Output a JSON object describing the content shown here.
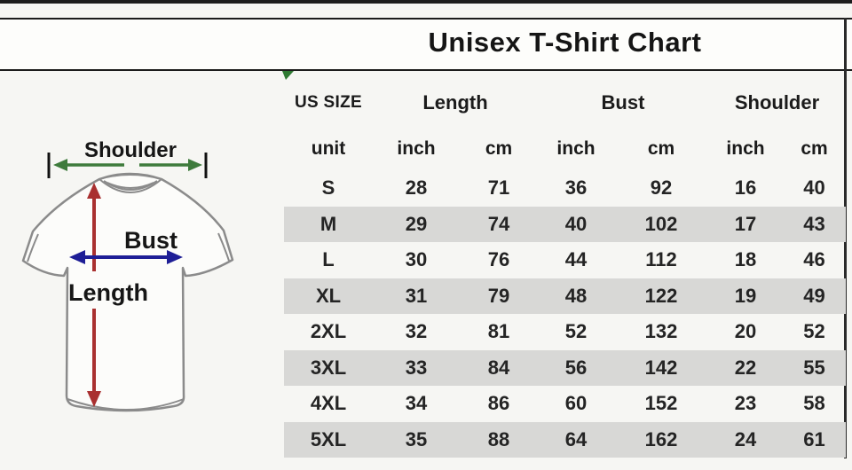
{
  "title": "Unisex T-Shirt Chart",
  "diagram": {
    "shoulder_label": "Shoulder",
    "bust_label": "Bust",
    "length_label": "Length",
    "colors": {
      "shoulder_arrow": "#3e7b3c",
      "bust_arrow": "#1e1e96",
      "length_arrow": "#a93030",
      "shirt_outline": "#8b8b8b"
    }
  },
  "table": {
    "size_col_header": "US SIZE",
    "unit_header": "unit",
    "groups": [
      {
        "label": "Length"
      },
      {
        "label": "Bust"
      },
      {
        "label": "Shoulder"
      }
    ],
    "unit_cells": [
      "inch",
      "cm",
      "inch",
      "cm",
      "inch",
      "cm"
    ],
    "alt_row_color": "#d8d8d6"
  },
  "chart_data": {
    "type": "table",
    "title": "Unisex T-Shirt Chart",
    "column_groups": [
      "Length",
      "Bust",
      "Shoulder"
    ],
    "columns": [
      "US SIZE",
      "Length inch",
      "Length cm",
      "Bust inch",
      "Bust cm",
      "Shoulder inch",
      "Shoulder cm"
    ],
    "rows": [
      [
        "S",
        28,
        71,
        36,
        92,
        16,
        40
      ],
      [
        "M",
        29,
        74,
        40,
        102,
        17,
        43
      ],
      [
        "L",
        30,
        76,
        44,
        112,
        18,
        46
      ],
      [
        "XL",
        31,
        79,
        48,
        122,
        19,
        49
      ],
      [
        "2XL",
        32,
        81,
        52,
        132,
        20,
        52
      ],
      [
        "3XL",
        33,
        84,
        56,
        142,
        22,
        55
      ],
      [
        "4XL",
        34,
        86,
        60,
        152,
        23,
        58
      ],
      [
        "5XL",
        35,
        88,
        64,
        162,
        24,
        61
      ]
    ]
  }
}
